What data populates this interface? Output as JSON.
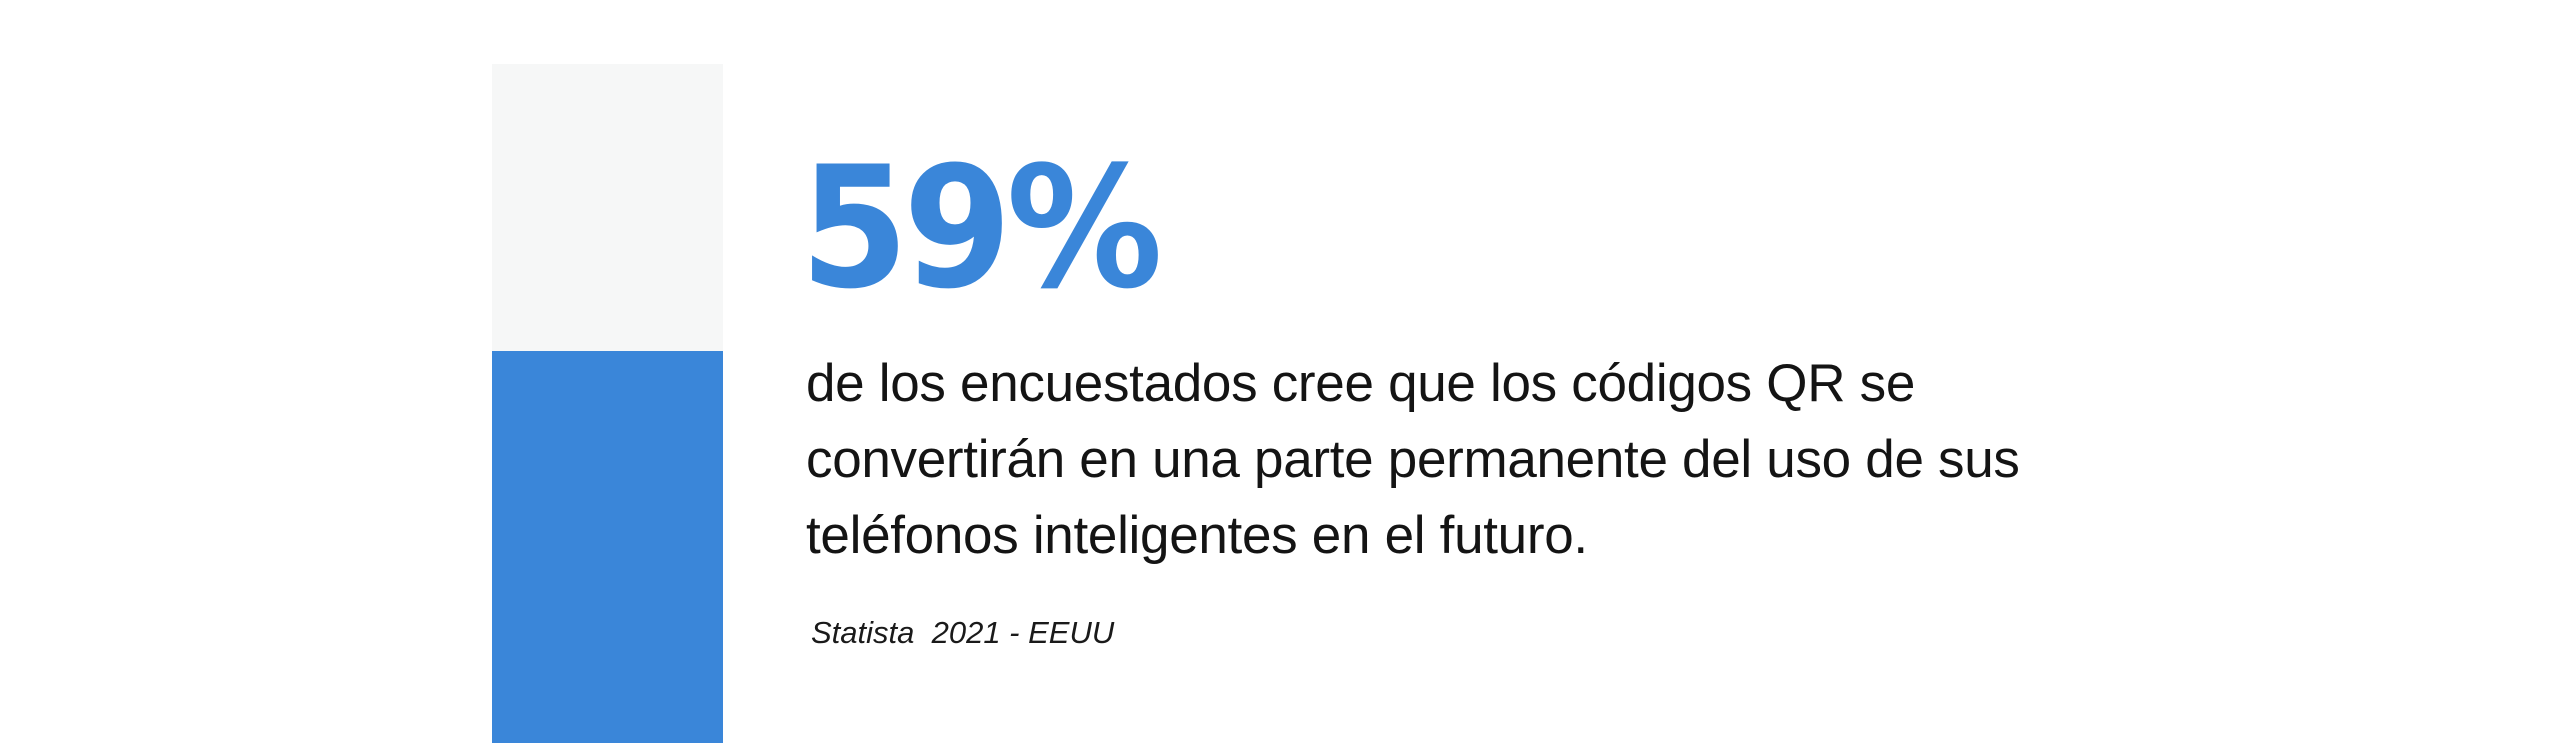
{
  "stat": {
    "value": "59%",
    "percent": 59,
    "description_lines": [
      "de los encuestados cree que los códigos QR se",
      "convertirán en una parte permanente del uso de sus",
      "teléfonos inteligentes en el futuro."
    ],
    "source": "Statista  2021 - EEUU"
  },
  "colors": {
    "accent": "#3a86d9",
    "bar_background": "#f6f7f7",
    "text": "#141414",
    "page_background": "#ffffff"
  }
}
